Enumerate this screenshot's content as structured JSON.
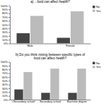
{
  "chart_data": [
    {
      "type": "bar",
      "title": "a) ...food can affect health?",
      "categories": [
        "Male",
        "Female"
      ],
      "series": [
        {
          "name": "No",
          "color": "#444444",
          "values": [
            27,
            15
          ]
        },
        {
          "name": "Yes",
          "color": "#bbbbbb",
          "values": [
            73,
            85
          ]
        }
      ],
      "ylim": [
        0,
        100
      ],
      "yticks": [
        {
          "value": 0,
          "label": "0%"
        },
        {
          "value": 10,
          "label": "10%"
        },
        {
          "value": 20,
          "label": "20%"
        },
        {
          "value": 30,
          "label": "30%"
        },
        {
          "value": 40,
          "label": "40%"
        },
        {
          "value": 50,
          "label": "50%"
        },
        {
          "value": 60,
          "label": "60%"
        },
        {
          "value": 70,
          "label": "70%"
        },
        {
          "value": 80,
          "label": "80%"
        },
        {
          "value": 90,
          "label": "90%"
        },
        {
          "value": 100,
          "label": "100%"
        }
      ],
      "grid": false,
      "legend": "upper right"
    },
    {
      "type": "bar",
      "title": "b) Do you think mixing between specific types of\nfood can affect health?",
      "categories": [
        "<Secondary school",
        "Secondary school",
        "Bachelor degree"
      ],
      "series": [
        {
          "name": "No",
          "color": "#444444",
          "values": [
            27,
            18,
            18
          ]
        },
        {
          "name": "Yes",
          "color": "#bbbbbb",
          "values": [
            73,
            82,
            82
          ]
        }
      ],
      "ylim": [
        0,
        100
      ],
      "yticks": [
        {
          "value": 0,
          "label": "0%"
        },
        {
          "value": 10,
          "label": "10%"
        },
        {
          "value": 20,
          "label": "20%"
        },
        {
          "value": 30,
          "label": "30%"
        },
        {
          "value": 40,
          "label": "40%"
        },
        {
          "value": 50,
          "label": "50%"
        },
        {
          "value": 60,
          "label": "60%"
        },
        {
          "value": 70,
          "label": "70%"
        },
        {
          "value": 80,
          "label": "80%"
        },
        {
          "value": 90,
          "label": "90%"
        },
        {
          "value": 100,
          "label": "100%"
        }
      ],
      "grid": false,
      "legend": "upper right"
    }
  ]
}
